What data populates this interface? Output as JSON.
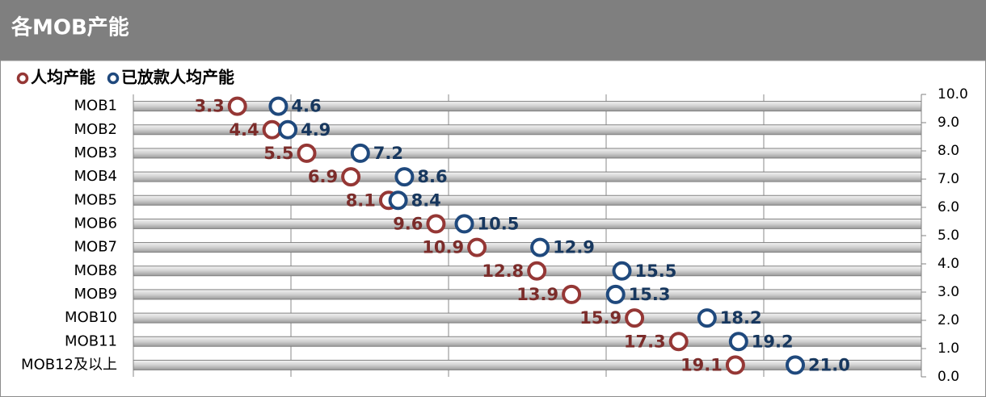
{
  "chart_data": {
    "type": "dot",
    "title": "各MOB产能",
    "categories": [
      "MOB1",
      "MOB2",
      "MOB3",
      "MOB4",
      "MOB5",
      "MOB6",
      "MOB7",
      "MOB8",
      "MOB9",
      "MOB10",
      "MOB11",
      "MOB12及以上"
    ],
    "series": [
      {
        "name": "人均产能",
        "color": "#953735",
        "label_color": "#7b2c2a",
        "values": [
          3.3,
          4.4,
          5.5,
          6.9,
          8.1,
          9.6,
          10.9,
          12.8,
          13.9,
          15.9,
          17.3,
          19.1
        ],
        "value_labels": [
          "3.3",
          "4.4",
          "5.5",
          "6.9",
          "8.1",
          "9.6",
          "10.9",
          "12.8",
          "13.9",
          "15.9",
          "17.3",
          "19.1"
        ]
      },
      {
        "name": "已放款人均产能",
        "color": "#1f497d",
        "label_color": "#17375e",
        "values": [
          4.6,
          4.9,
          7.2,
          8.6,
          8.4,
          10.5,
          12.9,
          15.5,
          15.3,
          18.2,
          19.2,
          21.0
        ],
        "value_labels": [
          "4.6",
          "4.9",
          "7.2",
          "8.6",
          "8.4",
          "10.5",
          "12.9",
          "15.5",
          "15.3",
          "18.2",
          "19.2",
          "21.0"
        ]
      }
    ],
    "xlim": [
      0,
      25
    ],
    "xticks": [
      0,
      5,
      10,
      15,
      20,
      25
    ],
    "grid": true,
    "y2lim": [
      0,
      10
    ],
    "y2ticks": [
      {
        "value": 0,
        "label": "0.0"
      },
      {
        "value": 1,
        "label": "1.0"
      },
      {
        "value": 2,
        "label": "2.0"
      },
      {
        "value": 3,
        "label": "3.0"
      },
      {
        "value": 4,
        "label": "4.0"
      },
      {
        "value": 5,
        "label": "5.0"
      },
      {
        "value": 6,
        "label": "6.0"
      },
      {
        "value": 7,
        "label": "7.0"
      },
      {
        "value": 8,
        "label": "8.0"
      },
      {
        "value": 9,
        "label": "9.0"
      },
      {
        "value": 10,
        "label": "10.0"
      }
    ],
    "legend": "top-left"
  }
}
